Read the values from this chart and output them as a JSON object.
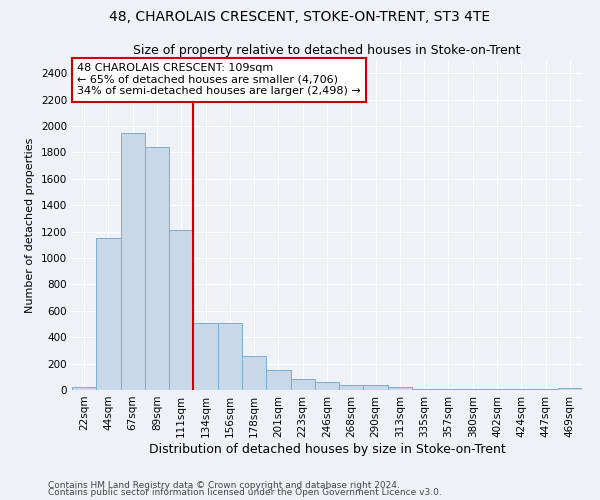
{
  "title": "48, CHAROLAIS CRESCENT, STOKE-ON-TRENT, ST3 4TE",
  "subtitle": "Size of property relative to detached houses in Stoke-on-Trent",
  "xlabel": "Distribution of detached houses by size in Stoke-on-Trent",
  "ylabel": "Number of detached properties",
  "categories": [
    "22sqm",
    "44sqm",
    "67sqm",
    "89sqm",
    "111sqm",
    "134sqm",
    "156sqm",
    "178sqm",
    "201sqm",
    "223sqm",
    "246sqm",
    "268sqm",
    "290sqm",
    "313sqm",
    "335sqm",
    "357sqm",
    "380sqm",
    "402sqm",
    "424sqm",
    "447sqm",
    "469sqm"
  ],
  "values": [
    25,
    1150,
    1950,
    1840,
    1215,
    510,
    510,
    260,
    155,
    80,
    60,
    40,
    40,
    20,
    10,
    10,
    10,
    8,
    8,
    5,
    15
  ],
  "bar_color": "#c8d8e8",
  "bar_edgecolor": "#7aadd0",
  "vline_color": "#cc0000",
  "vline_x_index": 4,
  "annotation_text": "48 CHAROLAIS CRESCENT: 109sqm\n← 65% of detached houses are smaller (4,706)\n34% of semi-detached houses are larger (2,498) →",
  "annotation_box_edgecolor": "#cc0000",
  "ylim": [
    0,
    2500
  ],
  "yticks": [
    0,
    200,
    400,
    600,
    800,
    1000,
    1200,
    1400,
    1600,
    1800,
    2000,
    2200,
    2400
  ],
  "footer1": "Contains HM Land Registry data © Crown copyright and database right 2024.",
  "footer2": "Contains public sector information licensed under the Open Government Licence v3.0.",
  "background_color": "#eef2f7",
  "grid_color": "#ffffff",
  "title_fontsize": 10,
  "subtitle_fontsize": 9,
  "xlabel_fontsize": 9,
  "ylabel_fontsize": 8,
  "tick_fontsize": 7.5,
  "annotation_fontsize": 8,
  "footer_fontsize": 6.5
}
